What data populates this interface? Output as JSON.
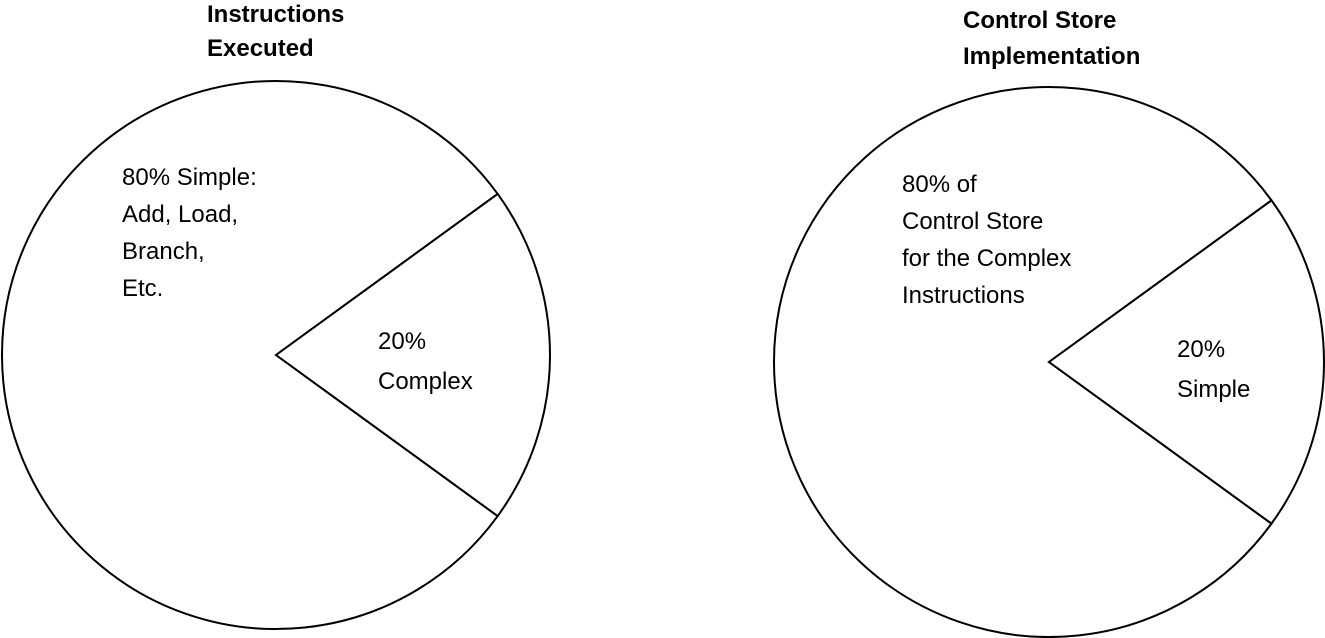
{
  "chart_data": [
    {
      "type": "pie",
      "title": [
        "Instructions",
        "Executed"
      ],
      "slices": [
        {
          "label": [
            "80% Simple:",
            "Add, Load,",
            "Branch,",
            "Etc."
          ],
          "value": 80
        },
        {
          "label": [
            "20%",
            "Complex"
          ],
          "value": 20
        }
      ],
      "colors": {
        "fill": "#ffffff",
        "stroke": "#000000"
      }
    },
    {
      "type": "pie",
      "title": [
        "Control Store",
        "Implementation"
      ],
      "slices": [
        {
          "label": [
            "80% of",
            "Control Store",
            "for the Complex",
            "Instructions"
          ],
          "value": 80
        },
        {
          "label": [
            "20%",
            "Simple"
          ],
          "value": 20
        }
      ],
      "colors": {
        "fill": "#ffffff",
        "stroke": "#000000"
      }
    }
  ]
}
